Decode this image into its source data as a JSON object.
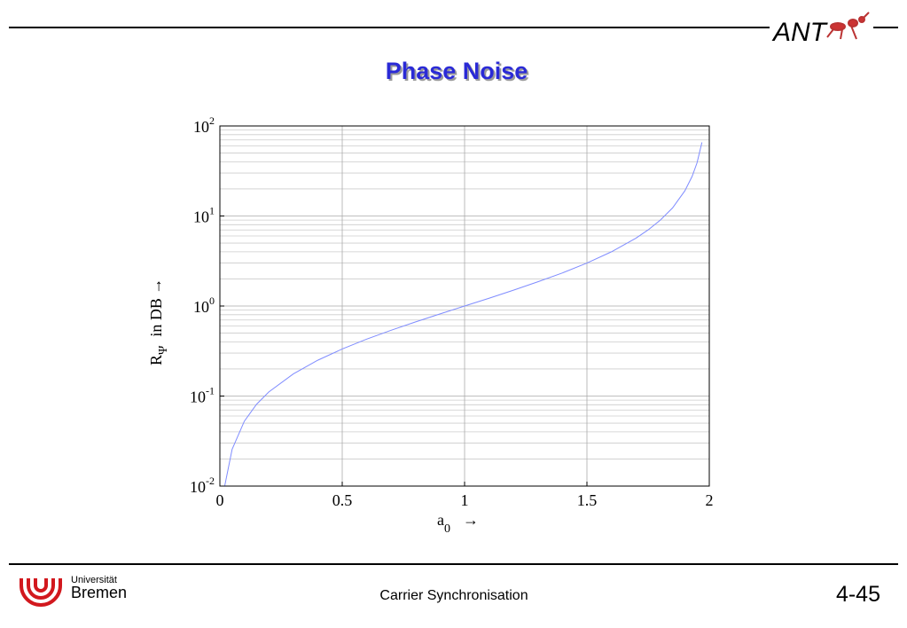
{
  "slide": {
    "title": "Phase Noise",
    "logo_text": "ANT",
    "university_line1": "Universität",
    "university_line2": "Bremen",
    "footer": "Carrier Synchronisation",
    "page_number": "4-45"
  },
  "chart_data": {
    "type": "line",
    "log_y": true,
    "grid": true,
    "xlabel": {
      "text": "a",
      "subscript": "0",
      "suffix": "→"
    },
    "ylabel": {
      "text": "R",
      "subscript": "Ψ",
      "suffix": "in  DB →"
    },
    "x": [
      0.02,
      0.05,
      0.1,
      0.15,
      0.2,
      0.3,
      0.4,
      0.5,
      0.6,
      0.7,
      0.8,
      0.9,
      1.0,
      1.1,
      1.2,
      1.3,
      1.4,
      1.5,
      1.6,
      1.7,
      1.75,
      1.8,
      1.85,
      1.9,
      1.93,
      1.95,
      1.97
    ],
    "series": [
      {
        "color": "#7f8cff",
        "values": [
          0.0101,
          0.0256,
          0.0526,
          0.0811,
          0.111,
          0.176,
          0.25,
          0.333,
          0.429,
          0.538,
          0.667,
          0.818,
          1.0,
          1.22,
          1.5,
          1.86,
          2.33,
          3.0,
          4.0,
          5.67,
          7.0,
          9.0,
          12.3,
          19.0,
          27.6,
          39.0,
          65.7
        ]
      }
    ],
    "xlim": [
      0,
      2
    ],
    "xticks": [
      0,
      0.5,
      1,
      1.5,
      2
    ],
    "ylim": [
      0.01,
      100
    ],
    "yticks": [
      {
        "value": 0.01,
        "label": "10",
        "exponent": "-2"
      },
      {
        "value": 0.1,
        "label": "10",
        "exponent": "-1"
      },
      {
        "value": 1,
        "label": "10",
        "exponent": "0"
      },
      {
        "value": 10,
        "label": "10",
        "exponent": "1"
      },
      {
        "value": 100,
        "label": "10",
        "exponent": "2"
      }
    ]
  }
}
